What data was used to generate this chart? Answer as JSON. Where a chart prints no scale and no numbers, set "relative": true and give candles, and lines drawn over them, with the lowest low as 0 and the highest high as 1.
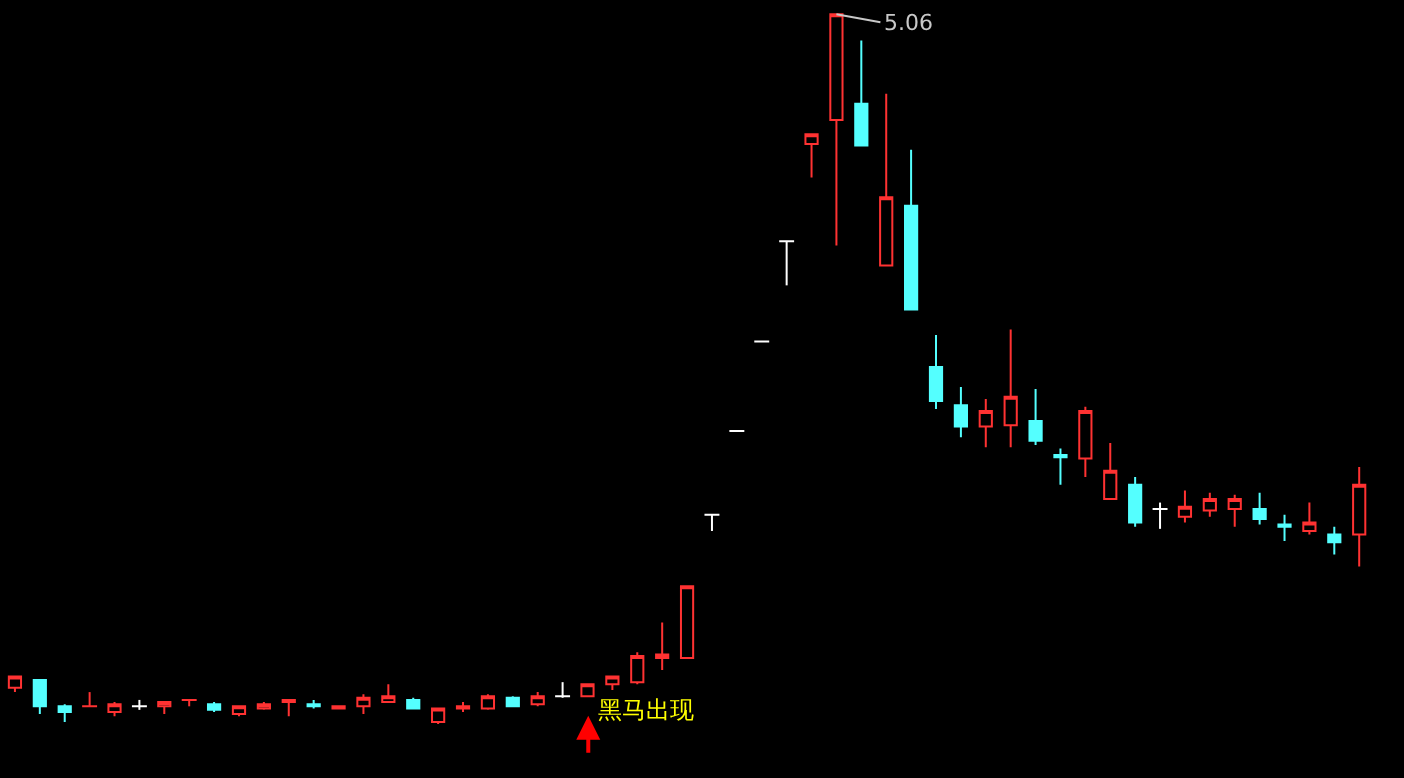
{
  "chart_data": {
    "type": "candlestick",
    "relative": true,
    "categories": [
      null,
      null,
      null,
      null,
      null,
      null,
      null,
      null,
      null,
      null,
      null,
      null,
      null,
      null,
      null,
      null,
      null,
      null,
      null,
      null,
      null,
      null,
      null,
      null,
      null,
      null,
      null,
      null,
      null,
      null,
      null,
      null,
      null,
      null,
      null,
      null,
      null,
      null,
      null,
      null,
      null,
      null,
      null,
      null,
      null,
      null,
      null,
      null,
      null,
      null,
      null,
      null,
      null,
      null,
      null
    ],
    "ohlc": [
      [
        0.051,
        0.067,
        0.045,
        0.067
      ],
      [
        0.062,
        0.062,
        0.014,
        0.025
      ],
      [
        0.025,
        0.028,
        0.003,
        0.017
      ],
      [
        0.025,
        0.045,
        0.025,
        0.025
      ],
      [
        0.017,
        0.031,
        0.011,
        0.028
      ],
      [
        0.025,
        0.034,
        0.02,
        0.025
      ],
      [
        0.025,
        0.031,
        0.014,
        0.031
      ],
      [
        0.034,
        0.034,
        0.025,
        0.034
      ],
      [
        0.028,
        0.031,
        0.017,
        0.02
      ],
      [
        0.014,
        0.025,
        0.011,
        0.025
      ],
      [
        0.022,
        0.031,
        0.02,
        0.028
      ],
      [
        0.031,
        0.034,
        0.011,
        0.034
      ],
      [
        0.028,
        0.034,
        0.022,
        0.025
      ],
      [
        0.022,
        0.025,
        0.022,
        0.025
      ],
      [
        0.025,
        0.042,
        0.014,
        0.037
      ],
      [
        0.031,
        0.056,
        0.031,
        0.039
      ],
      [
        0.034,
        0.037,
        0.022,
        0.022
      ],
      [
        0.003,
        0.022,
        0,
        0.022
      ],
      [
        0.022,
        0.031,
        0.017,
        0.025
      ],
      [
        0.022,
        0.042,
        0.02,
        0.039
      ],
      [
        0.037,
        0.039,
        0.025,
        0.025
      ],
      [
        0.028,
        0.045,
        0.025,
        0.039
      ],
      [
        0.039,
        0.059,
        0.037,
        0.039
      ],
      [
        0.039,
        0.056,
        0.039,
        0.056
      ],
      [
        0.056,
        0.067,
        0.048,
        0.067
      ],
      [
        0.059,
        0.101,
        0.056,
        0.096
      ],
      [
        0.093,
        0.143,
        0.076,
        0.098
      ],
      [
        0.093,
        0.194,
        0.093,
        0.194
      ],
      [
        0.295,
        0.295,
        0.272,
        0.295
      ],
      [
        0.413,
        0.413,
        0.413,
        0.413
      ],
      [
        0.539,
        0.539,
        0.539,
        0.539
      ],
      [
        0.68,
        0.68,
        0.618,
        0.68
      ],
      [
        0.817,
        0.831,
        0.77,
        0.831
      ],
      [
        0.851,
        1,
        0.674,
        1
      ],
      [
        0.874,
        0.963,
        0.815,
        0.815
      ],
      [
        0.646,
        0.888,
        0.646,
        0.742
      ],
      [
        0.73,
        0.809,
        0.584,
        0.584
      ],
      [
        0.503,
        0.548,
        0.444,
        0.455
      ],
      [
        0.449,
        0.475,
        0.404,
        0.419
      ],
      [
        0.419,
        0.458,
        0.39,
        0.441
      ],
      [
        0.421,
        0.556,
        0.39,
        0.461
      ],
      [
        0.427,
        0.472,
        0.393,
        0.399
      ],
      [
        0.379,
        0.388,
        0.337,
        0.376
      ],
      [
        0.374,
        0.447,
        0.348,
        0.441
      ],
      [
        0.317,
        0.396,
        0.317,
        0.357
      ],
      [
        0.337,
        0.348,
        0.278,
        0.284
      ],
      [
        0.303,
        0.312,
        0.275,
        0.303
      ],
      [
        0.292,
        0.329,
        0.284,
        0.306
      ],
      [
        0.301,
        0.326,
        0.292,
        0.317
      ],
      [
        0.303,
        0.323,
        0.278,
        0.317
      ],
      [
        0.303,
        0.326,
        0.281,
        0.289
      ],
      [
        0.281,
        0.295,
        0.258,
        0.278
      ],
      [
        0.272,
        0.312,
        0.267,
        0.284
      ],
      [
        0.267,
        0.278,
        0.239,
        0.256
      ],
      [
        0.267,
        0.362,
        0.222,
        0.337
      ]
    ],
    "colors": [
      "#ff3232",
      "#54ffff",
      "#54ffff",
      "#ff3232",
      "#ff3232",
      "#ffffff",
      "#ff3232",
      "#ff3232",
      "#54ffff",
      "#ff3232",
      "#ff3232",
      "#ff3232",
      "#54ffff",
      "#ff3232",
      "#ff3232",
      "#ff3232",
      "#54ffff",
      "#ff3232",
      "#ff3232",
      "#ff3232",
      "#54ffff",
      "#ff3232",
      "#ffffff",
      "#ff3232",
      "#ff3232",
      "#ff3232",
      "#ff3232",
      "#ff3232",
      "#ffffff",
      "#ffffff",
      "#ffffff",
      "#ffffff",
      "#ff3232",
      "#ff3232",
      "#54ffff",
      "#ff3232",
      "#54ffff",
      "#54ffff",
      "#54ffff",
      "#ff3232",
      "#ff3232",
      "#54ffff",
      "#54ffff",
      "#ff3232",
      "#ff3232",
      "#54ffff",
      "#ffffff",
      "#ff3232",
      "#ff3232",
      "#ff3232",
      "#54ffff",
      "#54ffff",
      "#ff3232",
      "#54ffff",
      "#ff3232"
    ],
    "annotations": [
      "5.06",
      "黑马出现"
    ]
  }
}
